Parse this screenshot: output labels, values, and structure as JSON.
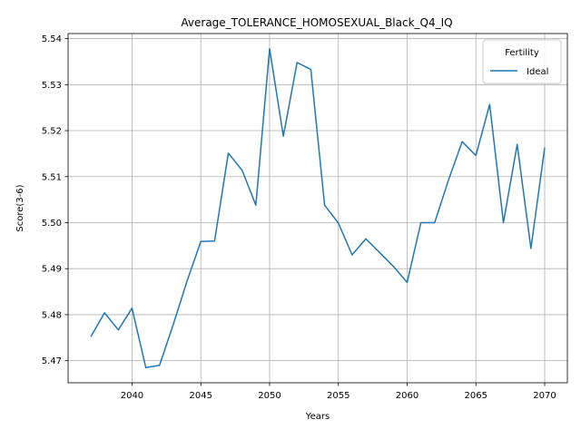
{
  "chart_data": {
    "type": "line",
    "title": "Average_TOLERANCE_HOMOSEXUAL_Black_Q4_IQ",
    "xlabel": "Years",
    "ylabel": "Score(3-6)",
    "xlim": [
      2035.35,
      2071.65
    ],
    "ylim": [
      5.4652,
      5.5411
    ],
    "xticks": [
      2040,
      2045,
      2050,
      2055,
      2060,
      2065,
      2070
    ],
    "yticks": [
      5.47,
      5.48,
      5.49,
      5.5,
      5.51,
      5.52,
      5.53,
      5.54
    ],
    "xtick_labels": [
      "2040",
      "2045",
      "2050",
      "2055",
      "2060",
      "2065",
      "2070"
    ],
    "ytick_labels": [
      "5.47",
      "5.48",
      "5.49",
      "5.50",
      "5.51",
      "5.52",
      "5.53",
      "5.54"
    ],
    "grid": true,
    "legend": {
      "title": "Fertility",
      "position": "top-right"
    },
    "series": [
      {
        "name": "Ideal",
        "color": "#1f77b4",
        "x": [
          2037,
          2038,
          2039,
          2040,
          2041,
          2042,
          2043,
          2044,
          2045,
          2046,
          2047,
          2048,
          2049,
          2050,
          2051,
          2052,
          2053,
          2054,
          2055,
          2056,
          2057,
          2058,
          2059,
          2060,
          2061,
          2062,
          2063,
          2064,
          2065,
          2066,
          2067,
          2068,
          2069,
          2070
        ],
        "y": [
          5.4752,
          5.4804,
          5.4767,
          5.4814,
          5.4685,
          5.469,
          5.4779,
          5.4873,
          5.4959,
          5.496,
          5.5151,
          5.5114,
          5.5038,
          5.5378,
          5.5188,
          5.5348,
          5.5333,
          5.5038,
          5.4999,
          5.493,
          5.4965,
          5.4935,
          5.4905,
          5.487,
          5.5,
          5.5,
          5.5092,
          5.5176,
          5.5146,
          5.5257,
          5.5,
          5.517,
          5.4944,
          5.5163
        ]
      }
    ]
  }
}
